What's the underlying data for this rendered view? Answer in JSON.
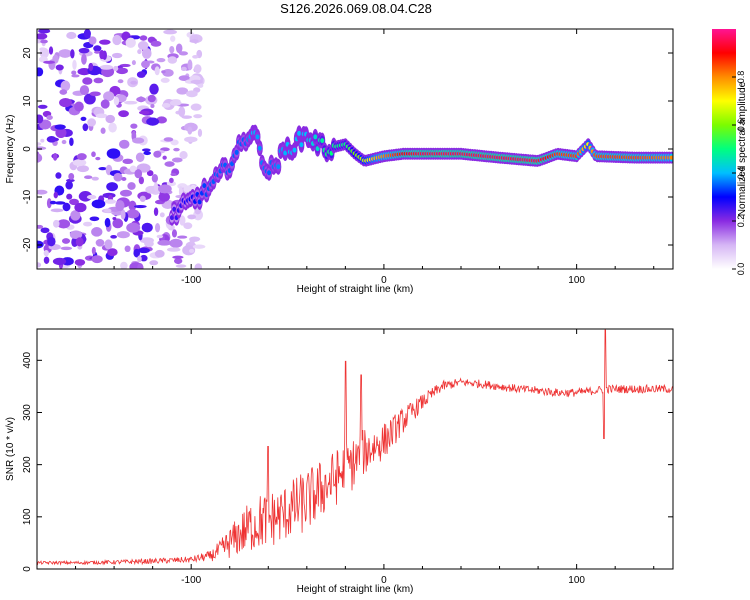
{
  "title": "S126.2026.069.08.04.C28",
  "chart_data": [
    {
      "type": "heatmap",
      "name": "spectrogram",
      "xlabel": "Height of straight line (km)",
      "ylabel": "Frequency (Hz)",
      "xlim": [
        -180,
        150
      ],
      "ylim": [
        -25,
        25
      ],
      "xticks": [
        -100,
        0,
        100
      ],
      "xtick_labels": [
        "-100",
        "0",
        "100"
      ],
      "yticks": [
        -20,
        -10,
        0,
        10,
        20
      ],
      "ytick_labels": [
        "-20",
        "-10",
        "0",
        "10",
        "20"
      ],
      "ridge": {
        "x": [
          -110,
          -100,
          -90,
          -80,
          -72,
          -68,
          -60,
          -50,
          -40,
          -34,
          -30,
          -20,
          -15,
          -10,
          -5,
          0,
          10,
          20,
          40,
          60,
          80,
          90,
          100,
          106,
          110,
          130,
          150
        ],
        "y": [
          -14,
          -11,
          -8,
          -3,
          2,
          4,
          -5,
          0,
          3,
          1,
          0,
          1,
          -1,
          -2.5,
          -2,
          -1.5,
          -1,
          -1,
          -1,
          -1.8,
          -2.5,
          -1,
          -1.5,
          1,
          -1.5,
          -1.8,
          -1.8
        ],
        "amplitude": [
          0.25,
          0.3,
          0.35,
          0.35,
          0.35,
          0.4,
          0.35,
          0.4,
          0.4,
          0.45,
          0.5,
          0.5,
          0.6,
          0.65,
          0.75,
          0.8,
          0.9,
          0.95,
          0.95,
          0.95,
          0.95,
          0.85,
          0.85,
          0.7,
          0.85,
          0.85,
          0.8
        ]
      },
      "noise_region_x": [
        -180,
        -105
      ],
      "colorbar": {
        "label": "Normalized spectral amplitude",
        "range": [
          0,
          1
        ],
        "ticks": [
          0.0,
          0.2,
          0.4,
          0.6,
          0.8
        ],
        "tick_labels": [
          "0.0",
          "0.2",
          "0.4",
          "0.6",
          "0.8"
        ],
        "colors": [
          "#ffffff",
          "#d6b6f5",
          "#8a2be2",
          "#0000ff",
          "#00bfff",
          "#00ff7f",
          "#7cfc00",
          "#ffff00",
          "#ff8c00",
          "#ff0000",
          "#ff1493"
        ]
      }
    },
    {
      "type": "line",
      "name": "snr",
      "xlabel": "Height of straight line (km)",
      "ylabel": "SNR (10 * v/v)",
      "xlim": [
        -180,
        150
      ],
      "ylim": [
        0,
        460
      ],
      "xticks": [
        -100,
        0,
        100
      ],
      "xtick_labels": [
        "-100",
        "0",
        "100"
      ],
      "yticks": [
        0,
        100,
        200,
        300,
        400
      ],
      "ytick_labels": [
        "0",
        "100",
        "200",
        "300",
        "400"
      ],
      "color": "#ee3333",
      "series": [
        {
          "name": "SNR",
          "x": [
            -180,
            -160,
            -140,
            -120,
            -100,
            -90,
            -85,
            -80,
            -75,
            -70,
            -65,
            -60,
            -55,
            -50,
            -45,
            -40,
            -35,
            -30,
            -25,
            -20,
            -15,
            -10,
            -5,
            0,
            5,
            10,
            20,
            30,
            40,
            50,
            60,
            70,
            80,
            90,
            100,
            110,
            115,
            120,
            130,
            140,
            150
          ],
          "y": [
            12,
            12,
            13,
            15,
            18,
            25,
            35,
            50,
            65,
            80,
            90,
            95,
            100,
            110,
            120,
            130,
            145,
            160,
            175,
            190,
            205,
            225,
            235,
            245,
            265,
            285,
            320,
            350,
            358,
            355,
            350,
            345,
            342,
            338,
            338,
            342,
            345,
            345,
            345,
            345,
            345
          ],
          "noise": [
            3,
            3,
            4,
            5,
            6,
            10,
            20,
            30,
            40,
            50,
            55,
            55,
            55,
            55,
            60,
            60,
            60,
            55,
            55,
            55,
            50,
            45,
            40,
            35,
            30,
            25,
            15,
            10,
            8,
            8,
            8,
            8,
            8,
            8,
            8,
            8,
            8,
            8,
            8,
            8,
            8
          ]
        }
      ],
      "spikes": [
        {
          "x": -60,
          "y": 235
        },
        {
          "x": -20,
          "y": 398
        },
        {
          "x": -12,
          "y": 372
        },
        {
          "x": 114,
          "y": 250
        },
        {
          "x": 115,
          "y": 458
        }
      ]
    }
  ]
}
